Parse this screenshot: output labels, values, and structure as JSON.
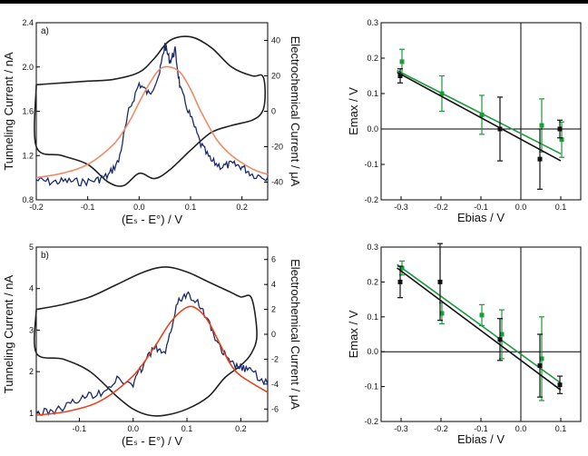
{
  "chart_data": [
    {
      "type": "line",
      "panel_label": "a)",
      "xlabel": "(Eₛ - E°) / V",
      "ylabel": "Tunneling Current / nA",
      "y2label": "Electrochemical Current / μA",
      "xlim": [
        -0.2,
        0.25
      ],
      "ylim": [
        0.8,
        2.4
      ],
      "y2lim": [
        -50,
        50
      ],
      "xticks": [
        "-0.2",
        "-0.1",
        "0.0",
        "0.1",
        "0.2"
      ],
      "xtick_values": [
        -0.2,
        -0.1,
        0.0,
        0.1,
        0.2
      ],
      "yticks": [
        "0.8",
        "1.2",
        "1.6",
        "2.0",
        "2.4"
      ],
      "ytick_values": [
        0.8,
        1.2,
        1.6,
        2.0,
        2.4
      ],
      "y2ticks": [
        "-40",
        "-20",
        "0",
        "20",
        "40"
      ],
      "y2tick_values": [
        -40,
        -20,
        0,
        20,
        40
      ],
      "series": [
        {
          "color": "#1b2a6b",
          "style": "noisy",
          "x": [
            -0.2,
            -0.17,
            -0.14,
            -0.11,
            -0.08,
            -0.06,
            -0.04,
            -0.02,
            0.0,
            0.02,
            0.04,
            0.05,
            0.06,
            0.07,
            0.08,
            0.1,
            0.12,
            0.14,
            0.16,
            0.18,
            0.2,
            0.22,
            0.25
          ],
          "y": [
            0.98,
            0.96,
            0.97,
            0.96,
            0.98,
            1.02,
            1.15,
            1.6,
            1.85,
            1.75,
            1.95,
            2.2,
            2.05,
            2.15,
            1.8,
            1.55,
            1.3,
            1.15,
            1.1,
            1.12,
            1.1,
            1.03,
            1.0
          ]
        },
        {
          "color": "#f08a6a",
          "style": "smooth",
          "x": [
            -0.2,
            -0.15,
            -0.1,
            -0.05,
            -0.02,
            0.0,
            0.02,
            0.04,
            0.06,
            0.08,
            0.1,
            0.12,
            0.15,
            0.18,
            0.22,
            0.25
          ],
          "y": [
            1.0,
            1.04,
            1.12,
            1.3,
            1.5,
            1.68,
            1.85,
            1.98,
            2.0,
            1.95,
            1.8,
            1.6,
            1.35,
            1.2,
            1.08,
            1.03
          ]
        }
      ],
      "cv": {
        "axis": "y2",
        "color": "#222222",
        "x": [
          -0.2,
          -0.15,
          -0.1,
          -0.05,
          0.0,
          0.03,
          0.06,
          0.1,
          0.14,
          0.18,
          0.22,
          0.24,
          0.245,
          0.24,
          0.22,
          0.18,
          0.14,
          0.1,
          0.06,
          0.03,
          0.0,
          -0.03,
          -0.06,
          -0.1,
          -0.15,
          -0.2
        ],
        "y": [
          15,
          16,
          17,
          18,
          22,
          30,
          40,
          42,
          36,
          25,
          20,
          20,
          10,
          0,
          -5,
          -8,
          -12,
          -22,
          -33,
          -38,
          -35,
          -42,
          -40,
          -30,
          -25,
          -20
        ]
      }
    },
    {
      "type": "scatter",
      "xlabel": "Ebias / V",
      "ylabel": "Emax / V",
      "xlim": [
        -0.35,
        0.15
      ],
      "ylim": [
        -0.2,
        0.3
      ],
      "xticks": [
        "-0.3",
        "-0.2",
        "-0.1",
        "0.0",
        "0.1"
      ],
      "xtick_values": [
        -0.3,
        -0.2,
        -0.1,
        0.0,
        0.1
      ],
      "yticks": [
        "-0.2",
        "-0.1",
        "0.0",
        "0.1",
        "0.2",
        "0.3"
      ],
      "ytick_values": [
        -0.2,
        -0.1,
        0.0,
        0.1,
        0.2,
        0.3
      ],
      "series": [
        {
          "color": "#1c9a3c",
          "x": [
            -0.3,
            -0.2,
            -0.1,
            0.05,
            0.1
          ],
          "y": [
            0.19,
            0.1,
            0.04,
            0.01,
            -0.03
          ],
          "err": [
            0.035,
            0.05,
            0.055,
            0.075,
            0.05
          ],
          "fit": [
            [
              -0.31,
              0.165
            ],
            [
              0.1,
              -0.07
            ]
          ]
        },
        {
          "color": "#111111",
          "x": [
            -0.3,
            -0.05,
            0.05,
            0.1
          ],
          "y": [
            0.15,
            0.0,
            -0.085,
            0.0
          ],
          "err": [
            0.02,
            0.09,
            0.085,
            0.025
          ],
          "fit": [
            [
              -0.31,
              0.16
            ],
            [
              0.1,
              -0.09
            ]
          ]
        }
      ]
    },
    {
      "type": "line",
      "panel_label": "b)",
      "xlabel": "(Eₛ - E°) / V",
      "ylabel": "Tunneling Current / nA",
      "y2label": "Electrochemical Current / μA",
      "xlim": [
        -0.18,
        0.25
      ],
      "ylim": [
        0.8,
        5.0
      ],
      "y2lim": [
        -7,
        7
      ],
      "xticks": [
        "-0.1",
        "0.0",
        "0.1",
        "0.2"
      ],
      "xtick_values": [
        -0.1,
        0.0,
        0.1,
        0.2
      ],
      "yticks": [
        "1",
        "2",
        "3",
        "4",
        "5"
      ],
      "ytick_values": [
        1,
        2,
        3,
        4,
        5
      ],
      "y2ticks": [
        "-6",
        "-4",
        "-2",
        "0",
        "2",
        "4",
        "6"
      ],
      "y2tick_values": [
        -6,
        -4,
        -2,
        0,
        2,
        4,
        6
      ],
      "series": [
        {
          "color": "#1b2a6b",
          "style": "noisy",
          "x": [
            -0.18,
            -0.15,
            -0.12,
            -0.09,
            -0.06,
            -0.03,
            0.0,
            0.02,
            0.04,
            0.06,
            0.08,
            0.1,
            0.12,
            0.14,
            0.16,
            0.18,
            0.2,
            0.22,
            0.25
          ],
          "y": [
            1.0,
            1.05,
            1.2,
            1.4,
            1.5,
            1.8,
            1.7,
            2.2,
            2.6,
            2.4,
            3.6,
            3.9,
            3.7,
            3.2,
            2.6,
            2.2,
            2.1,
            2.0,
            1.7
          ]
        },
        {
          "color": "#e8431c",
          "style": "smooth",
          "x": [
            -0.18,
            -0.12,
            -0.06,
            0.0,
            0.04,
            0.07,
            0.1,
            0.12,
            0.14,
            0.16,
            0.18,
            0.2,
            0.25
          ],
          "y": [
            0.95,
            1.05,
            1.3,
            1.9,
            2.6,
            3.2,
            3.55,
            3.5,
            3.2,
            2.7,
            2.2,
            1.9,
            1.5
          ]
        }
      ],
      "cv": {
        "axis": "y2",
        "color": "#222222",
        "x": [
          -0.18,
          -0.13,
          -0.08,
          -0.03,
          0.02,
          0.06,
          0.1,
          0.14,
          0.18,
          0.2,
          0.22,
          0.23,
          0.22,
          0.2,
          0.17,
          0.14,
          0.1,
          0.06,
          0.03,
          0.0,
          -0.03,
          -0.08,
          -0.13,
          -0.18
        ],
        "y": [
          2.0,
          2.4,
          3.0,
          4.0,
          5.0,
          5.4,
          5.0,
          4.2,
          3.4,
          3.0,
          2.9,
          0.0,
          -1.5,
          -2.5,
          -3.5,
          -5.0,
          -6.0,
          -6.5,
          -6.5,
          -6.0,
          -5.0,
          -3.0,
          -2.0,
          -1.5
        ]
      }
    },
    {
      "type": "scatter",
      "xlabel": "Ebias / V",
      "ylabel": "Emax / V",
      "xlim": [
        -0.35,
        0.15
      ],
      "ylim": [
        -0.2,
        0.3
      ],
      "xticks": [
        "-0.3",
        "-0.2",
        "-0.1",
        "0.0",
        "0.1"
      ],
      "xtick_values": [
        -0.3,
        -0.2,
        -0.1,
        0.0,
        0.1
      ],
      "yticks": [
        "-0.2",
        "-0.1",
        "0.0",
        "0.1",
        "0.2",
        "0.3"
      ],
      "ytick_values": [
        -0.2,
        -0.1,
        0.0,
        0.1,
        0.2,
        0.3
      ],
      "series": [
        {
          "color": "#1c9a3c",
          "x": [
            -0.3,
            -0.2,
            -0.1,
            -0.05,
            0.05
          ],
          "y": [
            0.24,
            0.11,
            0.105,
            0.05,
            -0.02
          ],
          "err": [
            0.02,
            0.03,
            0.03,
            0.07,
            0.12
          ],
          "fit": [
            [
              -0.31,
              0.25
            ],
            [
              0.1,
              -0.09
            ]
          ]
        },
        {
          "color": "#111111",
          "x": [
            -0.3,
            -0.2,
            -0.05,
            0.05,
            0.1
          ],
          "y": [
            0.2,
            0.2,
            0.035,
            -0.04,
            -0.095
          ],
          "err": [
            0.045,
            0.11,
            0.06,
            0.09,
            0.025
          ],
          "fit": [
            [
              -0.31,
              0.24
            ],
            [
              0.1,
              -0.11
            ]
          ]
        }
      ]
    }
  ]
}
